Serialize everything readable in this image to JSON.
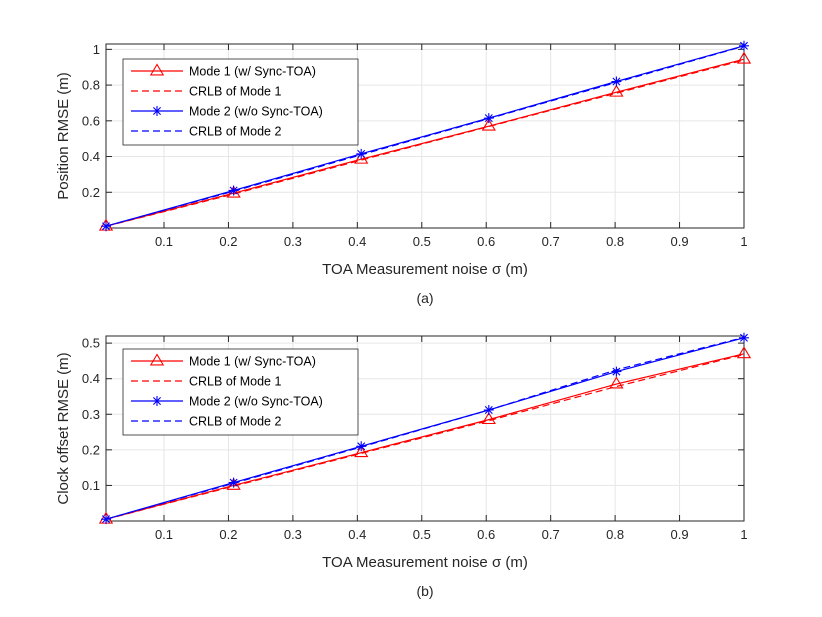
{
  "figure_colors": {
    "mode1": "#ff0000",
    "mode2": "#0000ff",
    "grid": "#e6e6e6",
    "axis": "#262626"
  },
  "chart_data": [
    {
      "type": "line",
      "caption": "(a)",
      "xlabel": "TOA Measurement noise σ (m)",
      "ylabel": "Position RMSE (m)",
      "xlim": [
        0.01,
        1
      ],
      "ylim": [
        0,
        1.03
      ],
      "xticks": [
        0.1,
        0.2,
        0.3,
        0.4,
        0.5,
        0.6,
        0.7,
        0.8,
        0.9,
        1
      ],
      "xtick_labels": [
        "0.1",
        "0.2",
        "0.3",
        "0.4",
        "0.5",
        "0.6",
        "0.7",
        "0.8",
        "0.9",
        "1"
      ],
      "yticks": [
        0.2,
        0.4,
        0.6,
        0.8,
        1
      ],
      "ytick_labels": [
        "0.2",
        "0.4",
        "0.6",
        "0.8",
        "1"
      ],
      "grid": true,
      "legend_position": "top-left",
      "x": [
        0.01,
        0.208,
        0.406,
        0.604,
        0.802,
        1.0
      ],
      "series": [
        {
          "name": "Mode 1 (w/ Sync-TOA)",
          "color": "#ff0000",
          "style": "solid",
          "marker": "triangle",
          "values": [
            0.01,
            0.195,
            0.385,
            0.57,
            0.76,
            0.945
          ]
        },
        {
          "name": "CRLB of Mode 1",
          "color": "#ff0000",
          "style": "dashed",
          "marker": "none",
          "values": [
            0.0095,
            0.19,
            0.38,
            0.568,
            0.755,
            0.94
          ]
        },
        {
          "name": "Mode 2 (w/o Sync-TOA)",
          "color": "#0000ff",
          "style": "solid",
          "marker": "asterisk",
          "values": [
            0.01,
            0.21,
            0.415,
            0.615,
            0.82,
            1.02
          ]
        },
        {
          "name": "CRLB of Mode 2",
          "color": "#0000ff",
          "style": "dashed",
          "marker": "none",
          "values": [
            0.0102,
            0.206,
            0.41,
            0.612,
            0.815,
            1.018
          ]
        }
      ]
    },
    {
      "type": "line",
      "caption": "(b)",
      "xlabel": "TOA Measurement noise σ (m)",
      "ylabel": "Clock offset RMSE (m)",
      "xlim": [
        0.01,
        1
      ],
      "ylim": [
        0,
        0.52
      ],
      "xticks": [
        0.1,
        0.2,
        0.3,
        0.4,
        0.5,
        0.6,
        0.7,
        0.8,
        0.9,
        1
      ],
      "xtick_labels": [
        "0.1",
        "0.2",
        "0.3",
        "0.4",
        "0.5",
        "0.6",
        "0.7",
        "0.8",
        "0.9",
        "1"
      ],
      "yticks": [
        0.1,
        0.2,
        0.3,
        0.4,
        0.5
      ],
      "ytick_labels": [
        "0.1",
        "0.2",
        "0.3",
        "0.4",
        "0.5"
      ],
      "grid": true,
      "legend_position": "top-left",
      "x": [
        0.01,
        0.208,
        0.406,
        0.604,
        0.802,
        1.0
      ],
      "series": [
        {
          "name": "Mode 1 (w/ Sync-TOA)",
          "color": "#ff0000",
          "style": "solid",
          "marker": "triangle",
          "values": [
            0.005,
            0.1,
            0.192,
            0.285,
            0.385,
            0.47
          ]
        },
        {
          "name": "CRLB of Mode 1",
          "color": "#ff0000",
          "style": "dashed",
          "marker": "none",
          "values": [
            0.0048,
            0.098,
            0.19,
            0.282,
            0.378,
            0.468
          ]
        },
        {
          "name": "Mode 2 (w/o Sync-TOA)",
          "color": "#0000ff",
          "style": "solid",
          "marker": "asterisk",
          "values": [
            0.0052,
            0.108,
            0.21,
            0.312,
            0.42,
            0.515
          ]
        },
        {
          "name": "CRLB of Mode 2",
          "color": "#0000ff",
          "style": "dashed",
          "marker": "none",
          "values": [
            0.0051,
            0.106,
            0.208,
            0.312,
            0.425,
            0.516
          ]
        }
      ]
    }
  ]
}
